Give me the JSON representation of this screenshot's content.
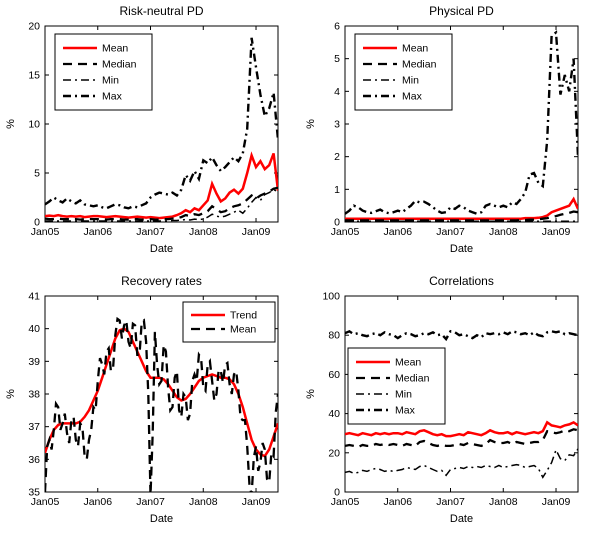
{
  "figure": {
    "background": "#ffffff",
    "accent_red": "#ff0000",
    "line_black": "#000000",
    "x_axis_note": "x values are months since Jan 2005",
    "panels_layout": "2x2 grid of line plots"
  },
  "chart_data": [
    {
      "type": "line",
      "title": "Risk-neutral PD",
      "xlabel": "Date",
      "ylabel": "%",
      "ylim": [
        0,
        20
      ],
      "yticks": [
        0,
        5,
        10,
        15,
        20
      ],
      "xtick_labels": [
        "Jan05",
        "Jan06",
        "Jan07",
        "Jan08",
        "Jan09"
      ],
      "xtick_positions": [
        0,
        12,
        24,
        36,
        48
      ],
      "x_domain": [
        0,
        53
      ],
      "grid": false,
      "legend": {
        "position": "top-left"
      },
      "series": [
        {
          "name": "Mean",
          "style": "solid",
          "color": "#ff0000",
          "width": 2.5,
          "values": [
            0.6,
            0.65,
            0.6,
            0.7,
            0.6,
            0.55,
            0.6,
            0.55,
            0.6,
            0.5,
            0.55,
            0.6,
            0.6,
            0.55,
            0.5,
            0.55,
            0.6,
            0.55,
            0.5,
            0.45,
            0.5,
            0.55,
            0.5,
            0.45,
            0.5,
            0.45,
            0.4,
            0.45,
            0.5,
            0.55,
            0.7,
            0.9,
            1.2,
            1.0,
            1.4,
            1.2,
            1.7,
            2.2,
            3.9,
            2.9,
            2.1,
            2.4,
            3.0,
            3.3,
            2.9,
            3.4,
            5.0,
            6.8,
            5.6,
            6.2,
            5.4,
            5.8,
            7.0,
            3.2
          ]
        },
        {
          "name": "Median",
          "style": "dashed",
          "color": "#000000",
          "width": 2.3,
          "values": [
            0.35,
            0.3,
            0.3,
            0.35,
            0.3,
            0.3,
            0.3,
            0.3,
            0.25,
            0.3,
            0.3,
            0.3,
            0.3,
            0.3,
            0.25,
            0.3,
            0.3,
            0.3,
            0.25,
            0.25,
            0.3,
            0.3,
            0.25,
            0.25,
            0.3,
            0.25,
            0.25,
            0.3,
            0.3,
            0.35,
            0.4,
            0.5,
            0.7,
            0.6,
            0.8,
            0.7,
            0.9,
            1.1,
            1.6,
            1.3,
            1.0,
            1.1,
            1.4,
            1.6,
            1.7,
            1.9,
            2.3,
            2.7,
            2.4,
            2.7,
            2.9,
            3.1,
            3.4,
            3.5
          ]
        },
        {
          "name": "Min",
          "style": "dashdot",
          "color": "#000000",
          "width": 1.5,
          "values": [
            0.1,
            0.1,
            0.1,
            0.1,
            0.1,
            0.1,
            0.1,
            0.1,
            0.1,
            0.1,
            0.1,
            0.1,
            0.1,
            0.1,
            0.1,
            0.1,
            0.1,
            0.1,
            0.1,
            0.1,
            0.1,
            0.1,
            0.1,
            0.1,
            0.1,
            0.1,
            0.1,
            0.1,
            0.1,
            0.15,
            0.15,
            0.2,
            0.25,
            0.2,
            0.3,
            0.25,
            0.3,
            0.5,
            0.8,
            0.6,
            0.5,
            0.6,
            0.8,
            1.0,
            1.2,
            0.9,
            1.4,
            2.0,
            2.5,
            2.2,
            2.8,
            3.0,
            3.3,
            3.1
          ]
        },
        {
          "name": "Max",
          "style": "dashdot",
          "color": "#000000",
          "width": 2.4,
          "values": [
            1.8,
            2.1,
            2.5,
            2.2,
            2.0,
            2.4,
            2.1,
            1.9,
            2.2,
            1.8,
            1.7,
            1.6,
            1.7,
            1.5,
            1.4,
            1.6,
            1.8,
            1.7,
            1.5,
            1.4,
            1.6,
            1.5,
            1.7,
            1.9,
            2.5,
            2.8,
            3.0,
            2.9,
            2.8,
            3.0,
            2.7,
            3.3,
            4.8,
            4.2,
            5.2,
            4.4,
            6.3,
            6.0,
            6.6,
            5.8,
            5.2,
            5.6,
            6.1,
            6.6,
            6.2,
            7.0,
            9.5,
            18.8,
            15.8,
            13.0,
            10.8,
            11.6,
            13.2,
            8.4
          ]
        }
      ]
    },
    {
      "type": "line",
      "title": "Physical PD",
      "xlabel": "Date",
      "ylabel": "%",
      "ylim": [
        0,
        6
      ],
      "yticks": [
        0,
        1,
        2,
        3,
        4,
        5,
        6
      ],
      "xtick_labels": [
        "Jan05",
        "Jan06",
        "Jan07",
        "Jan08",
        "Jan09"
      ],
      "xtick_positions": [
        0,
        12,
        24,
        36,
        48
      ],
      "x_domain": [
        0,
        53
      ],
      "grid": false,
      "legend": {
        "position": "top-left"
      },
      "series": [
        {
          "name": "Mean",
          "style": "solid",
          "color": "#ff0000",
          "width": 2.5,
          "values": [
            0.1,
            0.1,
            0.1,
            0.1,
            0.1,
            0.1,
            0.1,
            0.1,
            0.1,
            0.1,
            0.1,
            0.1,
            0.1,
            0.1,
            0.1,
            0.1,
            0.1,
            0.1,
            0.1,
            0.1,
            0.1,
            0.1,
            0.1,
            0.1,
            0.1,
            0.1,
            0.1,
            0.1,
            0.1,
            0.1,
            0.1,
            0.1,
            0.1,
            0.1,
            0.1,
            0.1,
            0.1,
            0.1,
            0.1,
            0.1,
            0.1,
            0.12,
            0.12,
            0.12,
            0.13,
            0.15,
            0.2,
            0.3,
            0.35,
            0.4,
            0.45,
            0.5,
            0.7,
            0.4
          ]
        },
        {
          "name": "Median",
          "style": "dashed",
          "color": "#000000",
          "width": 2.3,
          "values": [
            0.05,
            0.05,
            0.05,
            0.05,
            0.05,
            0.05,
            0.05,
            0.05,
            0.05,
            0.05,
            0.05,
            0.05,
            0.05,
            0.05,
            0.05,
            0.05,
            0.05,
            0.05,
            0.05,
            0.05,
            0.05,
            0.05,
            0.05,
            0.05,
            0.05,
            0.05,
            0.05,
            0.05,
            0.05,
            0.05,
            0.05,
            0.05,
            0.05,
            0.05,
            0.05,
            0.05,
            0.05,
            0.05,
            0.05,
            0.05,
            0.06,
            0.06,
            0.07,
            0.07,
            0.08,
            0.1,
            0.12,
            0.15,
            0.18,
            0.22,
            0.25,
            0.28,
            0.32,
            0.3
          ]
        },
        {
          "name": "Min",
          "style": "dashdot",
          "color": "#000000",
          "width": 1.5,
          "values": [
            0.02,
            0.02,
            0.02,
            0.02,
            0.02,
            0.02,
            0.02,
            0.02,
            0.02,
            0.02,
            0.02,
            0.02,
            0.02,
            0.02,
            0.02,
            0.02,
            0.02,
            0.02,
            0.02,
            0.02,
            0.02,
            0.02,
            0.02,
            0.02,
            0.02,
            0.02,
            0.02,
            0.02,
            0.02,
            0.02,
            0.02,
            0.02,
            0.02,
            0.02,
            0.02,
            0.02,
            0.02,
            0.02,
            0.02,
            0.02,
            0.02,
            0.02,
            0.02,
            0.02,
            0.02,
            0.02,
            0.02,
            0.02,
            0.02,
            0.02,
            0.02,
            0.02,
            0.02,
            0.02
          ]
        },
        {
          "name": "Max",
          "style": "dashdot",
          "color": "#000000",
          "width": 2.4,
          "values": [
            0.25,
            0.35,
            0.5,
            0.45,
            0.35,
            0.3,
            0.28,
            0.33,
            0.38,
            0.3,
            0.27,
            0.3,
            0.35,
            0.3,
            0.4,
            0.5,
            0.65,
            0.6,
            0.62,
            0.55,
            0.45,
            0.35,
            0.28,
            0.3,
            0.45,
            0.4,
            0.5,
            0.45,
            0.35,
            0.3,
            0.25,
            0.3,
            0.5,
            0.55,
            0.5,
            0.45,
            0.5,
            0.45,
            0.6,
            0.55,
            0.7,
            0.9,
            1.45,
            1.5,
            1.2,
            1.1,
            2.5,
            5.7,
            5.8,
            3.9,
            4.5,
            4.0,
            5.0,
            2.0
          ]
        }
      ]
    },
    {
      "type": "line",
      "title": "Recovery rates",
      "xlabel": "Date",
      "ylabel": "%",
      "ylim": [
        35,
        41
      ],
      "yticks": [
        35,
        36,
        37,
        38,
        39,
        40,
        41
      ],
      "xtick_labels": [
        "Jan05",
        "Jan06",
        "Jan07",
        "Jan08",
        "Jan09"
      ],
      "xtick_positions": [
        0,
        12,
        24,
        36,
        48
      ],
      "x_domain": [
        0,
        53
      ],
      "grid": false,
      "legend": {
        "position": "top-right"
      },
      "series": [
        {
          "name": "Trend",
          "style": "solid",
          "color": "#ff0000",
          "width": 2.5,
          "values": [
            36.2,
            36.6,
            36.9,
            37.05,
            37.1,
            37.1,
            37.1,
            37.1,
            37.15,
            37.3,
            37.5,
            37.8,
            38.1,
            38.5,
            38.9,
            39.3,
            39.7,
            39.95,
            40.0,
            39.9,
            39.6,
            39.3,
            39.0,
            38.7,
            38.5,
            38.5,
            38.5,
            38.45,
            38.3,
            38.1,
            37.9,
            37.8,
            37.85,
            38.0,
            38.2,
            38.4,
            38.5,
            38.55,
            38.6,
            38.55,
            38.5,
            38.5,
            38.45,
            38.3,
            38.0,
            37.6,
            37.1,
            36.6,
            36.3,
            36.15,
            36.1,
            36.3,
            36.7,
            37.1
          ]
        },
        {
          "name": "Mean",
          "style": "dashed",
          "color": "#000000",
          "width": 2.3,
          "x_step": 0.5,
          "values": [
            35.0,
            36.4,
            36.6,
            36.3,
            36.9,
            37.7,
            37.6,
            36.9,
            37.1,
            37.4,
            36.8,
            36.5,
            37.2,
            37.3,
            36.6,
            36.4,
            37.1,
            37.0,
            36.1,
            36.0,
            36.6,
            36.9,
            37.6,
            37.5,
            38.4,
            39.1,
            38.9,
            38.6,
            39.3,
            39.4,
            38.7,
            38.8,
            39.8,
            40.3,
            40.25,
            39.7,
            40.1,
            40.25,
            39.6,
            39.4,
            40.15,
            40.1,
            39.2,
            39.2,
            40.2,
            40.25,
            39.6,
            38.0,
            34.9,
            36.8,
            39.9,
            38.9,
            38.3,
            38.4,
            39.5,
            39.3,
            38.2,
            37.5,
            37.6,
            38.5,
            38.7,
            37.5,
            37.3,
            38.0,
            37.9,
            37.2,
            37.4,
            38.4,
            38.6,
            38.4,
            39.2,
            39.1,
            38.2,
            38.1,
            38.9,
            39.0,
            38.4,
            37.8,
            38.0,
            38.75,
            38.7,
            38.35,
            38.9,
            38.95,
            38.3,
            38.0,
            38.6,
            38.7,
            38.1,
            37.25,
            37.2,
            37.2,
            36.4,
            35.25,
            34.9,
            36.05,
            36.4,
            35.65,
            35.9,
            36.5,
            36.3,
            35.4,
            35.3,
            36.2,
            36.1,
            37.45,
            38.0
          ]
        }
      ]
    },
    {
      "type": "line",
      "title": "Correlations",
      "xlabel": "Date",
      "ylabel": "%",
      "ylim": [
        0,
        100
      ],
      "yticks": [
        0,
        20,
        40,
        60,
        80,
        100
      ],
      "xtick_labels": [
        "Jan05",
        "Jan06",
        "Jan07",
        "Jan08",
        "Jan09"
      ],
      "xtick_positions": [
        0,
        12,
        24,
        36,
        48
      ],
      "x_domain": [
        0,
        53
      ],
      "grid": false,
      "legend": {
        "position": "middle-left"
      },
      "series": [
        {
          "name": "Mean",
          "style": "solid",
          "color": "#ff0000",
          "width": 2.5,
          "values": [
            29.5,
            30,
            29.5,
            29,
            30,
            29.5,
            29,
            30,
            29.5,
            30,
            29.5,
            30,
            30,
            29.5,
            30.5,
            30,
            29.5,
            31,
            31.5,
            30.5,
            29.5,
            29,
            29.5,
            28.5,
            28.5,
            29,
            29.5,
            29,
            30.5,
            30,
            29.5,
            29,
            30,
            31.5,
            30.5,
            30,
            30,
            30.5,
            29.5,
            30.5,
            30,
            29.5,
            30,
            30.5,
            30,
            31,
            35.5,
            34,
            33.5,
            33,
            34,
            34.5,
            35.5,
            34
          ]
        },
        {
          "name": "Median",
          "style": "dashed",
          "color": "#000000",
          "width": 2.3,
          "values": [
            23.5,
            24,
            23.5,
            23,
            24,
            23.5,
            23.5,
            24.5,
            24,
            24.5,
            24,
            24.5,
            24,
            23.5,
            24.5,
            24,
            23.5,
            25.5,
            26,
            25,
            24,
            23.5,
            24,
            23.5,
            23.5,
            24,
            24.5,
            24,
            25,
            24.5,
            24,
            23.5,
            24.5,
            26.5,
            25.5,
            25,
            25,
            25.5,
            24.5,
            25.5,
            25,
            24.5,
            25,
            25.5,
            25.5,
            26.5,
            31,
            30.5,
            30,
            30.5,
            31.5,
            31,
            32,
            31.5
          ]
        },
        {
          "name": "Min",
          "style": "dashdot",
          "color": "#000000",
          "width": 1.5,
          "values": [
            10,
            10.5,
            9.5,
            10,
            11,
            10.5,
            11.5,
            12,
            11.5,
            10.5,
            11,
            10.5,
            11,
            11.5,
            12.5,
            12,
            11.5,
            13,
            13.5,
            12.5,
            11.5,
            10.5,
            11,
            8.5,
            11.5,
            12,
            12.5,
            12,
            13,
            12.5,
            13,
            12.5,
            13.5,
            13,
            12.5,
            13.5,
            12.5,
            13,
            13.5,
            14,
            13.5,
            12.5,
            13,
            13.5,
            12,
            7.5,
            11,
            15,
            21.5,
            17,
            16,
            19,
            18.5,
            22
          ]
        },
        {
          "name": "Max",
          "style": "dashdot",
          "color": "#000000",
          "width": 2.4,
          "values": [
            81,
            82,
            80.5,
            81,
            80,
            79.5,
            80.5,
            81,
            80,
            81.5,
            80.5,
            80,
            78.5,
            80,
            81,
            80.5,
            79.5,
            80,
            81,
            80.5,
            81.5,
            80,
            80.5,
            78,
            82,
            81.5,
            80,
            80.5,
            79.5,
            78.5,
            80,
            79,
            81,
            80.5,
            81,
            80.5,
            81.5,
            80.5,
            82,
            81.5,
            80.5,
            81,
            80,
            81.5,
            80,
            79.5,
            81.5,
            82,
            81.5,
            82,
            80.5,
            81,
            80.5,
            80
          ]
        }
      ]
    }
  ]
}
